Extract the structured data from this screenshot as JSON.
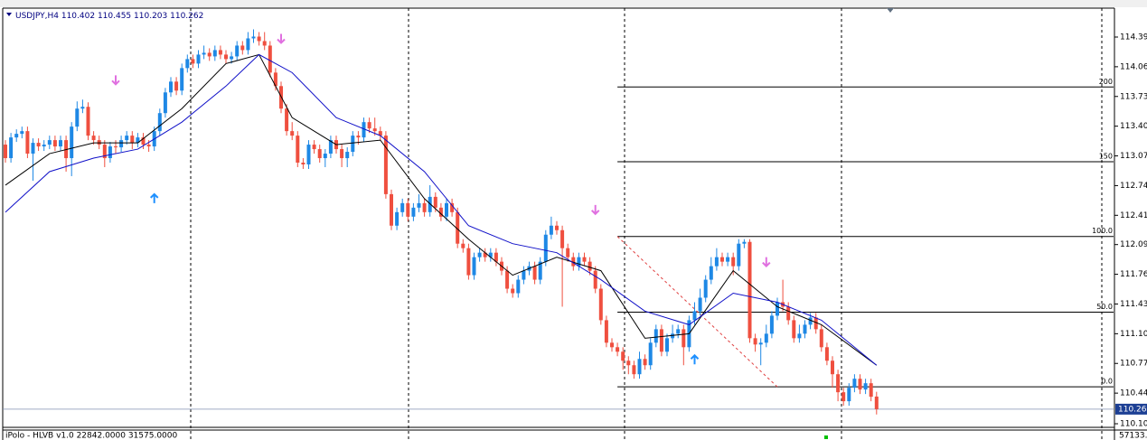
{
  "chart_data": {
    "type": "candlestick",
    "title": "USDJPY,H4",
    "ylim": [
      110.06,
      114.716
    ],
    "yticks": [
      114.395,
      114.065,
      113.735,
      113.405,
      113.075,
      112.745,
      112.415,
      {
        "value": 112.09,
        "label": "112.090"
      },
      {
        "value": 111.76,
        "label": "111.760"
      },
      {
        "value": 111.43,
        "label": "111.430"
      },
      {
        "value": 111.1,
        "label": "111.100"
      },
      {
        "value": 110.77,
        "label": "110.770"
      },
      {
        "value": 110.44,
        "label": "110.440"
      },
      {
        "value": 110.1,
        "label": "110.100"
      }
    ],
    "bull_color": "#1e88e5",
    "bear_color": "#ef4f3f",
    "candles": [
      [
        113.2,
        113.25,
        113.0,
        113.05
      ],
      [
        113.05,
        113.33,
        113.0,
        113.28
      ],
      [
        113.28,
        113.37,
        113.23,
        113.32
      ],
      [
        113.32,
        113.4,
        113.27,
        113.35
      ],
      [
        113.35,
        113.4,
        113.05,
        113.1
      ],
      [
        113.1,
        113.27,
        112.8,
        113.22
      ],
      [
        113.22,
        113.27,
        113.13,
        113.18
      ],
      [
        113.18,
        113.25,
        113.13,
        113.2
      ],
      [
        113.2,
        113.3,
        113.15,
        113.25
      ],
      [
        113.25,
        113.3,
        113.13,
        113.18
      ],
      [
        113.18,
        113.3,
        113.13,
        113.25
      ],
      [
        113.25,
        113.3,
        112.9,
        113.05
      ],
      [
        113.05,
        113.45,
        112.85,
        113.4
      ],
      [
        113.4,
        113.68,
        113.35,
        113.6
      ],
      [
        113.6,
        113.7,
        113.55,
        113.62
      ],
      [
        113.62,
        113.67,
        113.25,
        113.3
      ],
      [
        113.3,
        113.35,
        113.2,
        113.25
      ],
      [
        113.25,
        113.3,
        113.15,
        113.2
      ],
      [
        113.2,
        113.25,
        112.95,
        113.05
      ],
      [
        113.05,
        113.23,
        113.0,
        113.18
      ],
      [
        113.18,
        113.25,
        113.1,
        113.17
      ],
      [
        113.17,
        113.3,
        113.12,
        113.25
      ],
      [
        113.25,
        113.35,
        113.2,
        113.3
      ],
      [
        113.3,
        113.35,
        113.15,
        113.22
      ],
      [
        113.22,
        113.33,
        113.17,
        113.28
      ],
      [
        113.28,
        113.33,
        113.15,
        113.2
      ],
      [
        113.2,
        113.25,
        113.12,
        113.18
      ],
      [
        113.18,
        113.4,
        113.13,
        113.35
      ],
      [
        113.35,
        113.6,
        113.3,
        113.55
      ],
      [
        113.55,
        113.83,
        113.5,
        113.78
      ],
      [
        113.78,
        113.95,
        113.73,
        113.9
      ],
      [
        113.9,
        113.95,
        113.75,
        113.8
      ],
      [
        113.8,
        114.1,
        113.75,
        114.05
      ],
      [
        114.05,
        114.2,
        114.0,
        114.15
      ],
      [
        114.15,
        114.2,
        114.05,
        114.1
      ],
      [
        114.1,
        114.25,
        114.05,
        114.2
      ],
      [
        114.2,
        114.3,
        114.15,
        114.22
      ],
      [
        114.22,
        114.27,
        114.13,
        114.18
      ],
      [
        114.18,
        114.3,
        114.13,
        114.25
      ],
      [
        114.25,
        114.3,
        114.15,
        114.2
      ],
      [
        114.2,
        114.25,
        114.1,
        114.15
      ],
      [
        114.15,
        114.23,
        114.1,
        114.18
      ],
      [
        114.18,
        114.35,
        114.13,
        114.3
      ],
      [
        114.3,
        114.35,
        114.2,
        114.25
      ],
      [
        114.25,
        114.45,
        114.2,
        114.38
      ],
      [
        114.38,
        114.48,
        114.33,
        114.4
      ],
      [
        114.4,
        114.45,
        114.3,
        114.35
      ],
      [
        114.35,
        114.45,
        114.25,
        114.3
      ],
      [
        114.3,
        114.35,
        113.95,
        114.0
      ],
      [
        114.0,
        114.05,
        113.8,
        113.85
      ],
      [
        113.85,
        113.9,
        113.55,
        113.6
      ],
      [
        113.6,
        113.65,
        113.3,
        113.35
      ],
      [
        113.35,
        113.45,
        113.25,
        113.3
      ],
      [
        113.3,
        113.35,
        112.95,
        113.0
      ],
      [
        113.0,
        113.05,
        112.93,
        112.98
      ],
      [
        112.98,
        113.25,
        112.93,
        113.2
      ],
      [
        113.2,
        113.25,
        113.1,
        113.15
      ],
      [
        113.15,
        113.2,
        113.0,
        113.05
      ],
      [
        113.05,
        113.15,
        112.95,
        113.1
      ],
      [
        113.1,
        113.3,
        113.05,
        113.25
      ],
      [
        113.25,
        113.3,
        113.1,
        113.15
      ],
      [
        113.15,
        113.2,
        112.95,
        113.05
      ],
      [
        113.05,
        113.17,
        112.95,
        113.12
      ],
      [
        113.12,
        113.35,
        113.07,
        113.3
      ],
      [
        113.3,
        113.35,
        113.2,
        113.28
      ],
      [
        113.28,
        113.5,
        113.23,
        113.45
      ],
      [
        113.45,
        113.5,
        113.33,
        113.38
      ],
      [
        113.38,
        113.5,
        113.3,
        113.35
      ],
      [
        113.35,
        113.4,
        113.25,
        113.3
      ],
      [
        113.3,
        113.35,
        112.6,
        112.65
      ],
      [
        112.65,
        112.7,
        112.25,
        112.3
      ],
      [
        112.3,
        112.5,
        112.25,
        112.45
      ],
      [
        112.45,
        112.6,
        112.4,
        112.55
      ],
      [
        112.55,
        112.6,
        112.35,
        112.4
      ],
      [
        112.4,
        112.55,
        112.35,
        112.5
      ],
      [
        112.5,
        112.65,
        112.45,
        112.55
      ],
      [
        112.55,
        112.6,
        112.4,
        112.45
      ],
      [
        112.45,
        112.75,
        112.4,
        112.62
      ],
      [
        112.62,
        112.67,
        112.45,
        112.5
      ],
      [
        112.5,
        112.55,
        112.35,
        112.4
      ],
      [
        112.4,
        112.6,
        112.35,
        112.55
      ],
      [
        112.55,
        112.6,
        112.4,
        112.45
      ],
      [
        112.45,
        112.5,
        112.05,
        112.1
      ],
      [
        112.1,
        112.15,
        112.0,
        112.05
      ],
      [
        112.05,
        112.1,
        111.7,
        111.75
      ],
      [
        111.75,
        112.0,
        111.7,
        111.95
      ],
      [
        111.95,
        112.05,
        111.9,
        112.0
      ],
      [
        112.0,
        112.05,
        111.9,
        111.95
      ],
      [
        111.95,
        112.05,
        111.9,
        112.0
      ],
      [
        112.0,
        112.05,
        111.85,
        111.9
      ],
      [
        111.9,
        111.95,
        111.75,
        111.8
      ],
      [
        111.8,
        111.85,
        111.55,
        111.6
      ],
      [
        111.6,
        111.65,
        111.5,
        111.55
      ],
      [
        111.55,
        111.75,
        111.5,
        111.7
      ],
      [
        111.7,
        111.85,
        111.65,
        111.8
      ],
      [
        111.8,
        111.9,
        111.75,
        111.85
      ],
      [
        111.85,
        111.9,
        111.65,
        111.7
      ],
      [
        111.7,
        111.95,
        111.65,
        111.9
      ],
      [
        111.9,
        112.25,
        111.85,
        112.2
      ],
      [
        112.2,
        112.4,
        112.15,
        112.3
      ],
      [
        112.3,
        112.35,
        112.2,
        112.25
      ],
      [
        112.25,
        112.3,
        111.4,
        112.05
      ],
      [
        112.05,
        112.1,
        111.9,
        111.95
      ],
      [
        111.95,
        112.0,
        111.8,
        111.85
      ],
      [
        111.85,
        112.0,
        111.8,
        111.95
      ],
      [
        111.95,
        112.0,
        111.85,
        111.9
      ],
      [
        111.9,
        111.95,
        111.75,
        111.8
      ],
      [
        111.8,
        111.85,
        111.55,
        111.6
      ],
      [
        111.6,
        111.65,
        111.2,
        111.25
      ],
      [
        111.25,
        111.3,
        110.95,
        111.0
      ],
      [
        111.0,
        111.05,
        110.9,
        110.95
      ],
      [
        110.95,
        111.0,
        110.85,
        110.9
      ],
      [
        110.9,
        110.95,
        110.7,
        110.8
      ],
      [
        110.8,
        110.85,
        110.65,
        110.75
      ],
      [
        110.75,
        110.8,
        110.6,
        110.65
      ],
      [
        110.65,
        110.9,
        110.6,
        110.82
      ],
      [
        110.82,
        110.87,
        110.7,
        110.75
      ],
      [
        110.75,
        111.05,
        110.7,
        111.0
      ],
      [
        111.0,
        111.2,
        110.95,
        111.15
      ],
      [
        111.15,
        111.2,
        110.85,
        110.9
      ],
      [
        110.9,
        111.1,
        110.85,
        111.05
      ],
      [
        111.05,
        111.2,
        111.0,
        111.1
      ],
      [
        111.1,
        111.2,
        111.05,
        111.15
      ],
      [
        111.15,
        111.2,
        110.75,
        110.95
      ],
      [
        110.95,
        111.3,
        110.9,
        111.25
      ],
      [
        111.25,
        111.45,
        111.2,
        111.35
      ],
      [
        111.35,
        111.6,
        111.3,
        111.5
      ],
      [
        111.5,
        111.75,
        111.45,
        111.7
      ],
      [
        111.7,
        111.95,
        111.65,
        111.85
      ],
      [
        111.85,
        112.05,
        111.8,
        111.95
      ],
      [
        111.95,
        112.0,
        111.85,
        111.9
      ],
      [
        111.9,
        112.0,
        111.85,
        111.95
      ],
      [
        111.95,
        112.0,
        111.75,
        111.85
      ],
      [
        111.85,
        112.15,
        111.8,
        112.1
      ],
      [
        112.1,
        112.15,
        112.05,
        112.12
      ],
      [
        112.12,
        112.15,
        111.0,
        111.05
      ],
      [
        111.05,
        111.1,
        110.9,
        110.98
      ],
      [
        110.98,
        111.05,
        110.75,
        111.0
      ],
      [
        111.0,
        111.2,
        110.95,
        111.1
      ],
      [
        111.1,
        111.35,
        111.05,
        111.3
      ],
      [
        111.3,
        111.5,
        111.25,
        111.45
      ],
      [
        111.45,
        111.7,
        111.35,
        111.4
      ],
      [
        111.4,
        111.45,
        111.2,
        111.25
      ],
      [
        111.25,
        111.3,
        111.0,
        111.05
      ],
      [
        111.05,
        111.2,
        111.0,
        111.1
      ],
      [
        111.1,
        111.25,
        111.05,
        111.2
      ],
      [
        111.2,
        111.33,
        111.15,
        111.28
      ],
      [
        111.28,
        111.33,
        111.1,
        111.15
      ],
      [
        111.15,
        111.2,
        110.9,
        110.95
      ],
      [
        110.95,
        111.0,
        110.75,
        110.8
      ],
      [
        110.8,
        110.85,
        110.5,
        110.65
      ],
      [
        110.65,
        110.7,
        110.35,
        110.45
      ],
      [
        110.45,
        110.5,
        110.3,
        110.35
      ],
      [
        110.35,
        110.55,
        110.3,
        110.5
      ],
      [
        110.5,
        110.65,
        110.45,
        110.6
      ],
      [
        110.6,
        110.65,
        110.43,
        110.48
      ],
      [
        110.48,
        110.6,
        110.43,
        110.55
      ],
      [
        110.55,
        110.6,
        110.35,
        110.4
      ],
      [
        110.402,
        110.455,
        110.203,
        110.262
      ]
    ],
    "ma_fast": {
      "color": "#000000",
      "x": [
        0,
        8,
        16,
        24,
        32,
        40,
        46,
        52,
        60,
        68,
        76,
        84,
        92,
        100,
        108,
        116,
        124,
        132,
        140,
        148,
        158
      ],
      "values": [
        112.75,
        113.1,
        113.22,
        113.22,
        113.6,
        114.1,
        114.2,
        113.5,
        113.2,
        113.25,
        112.6,
        112.15,
        111.75,
        111.95,
        111.8,
        111.05,
        111.1,
        111.8,
        111.4,
        111.2,
        110.75
      ]
    },
    "ma_slow": {
      "color": "#1010c8",
      "x": [
        0,
        8,
        16,
        24,
        32,
        40,
        46,
        52,
        60,
        68,
        76,
        84,
        92,
        100,
        108,
        116,
        124,
        132,
        140,
        148,
        158
      ],
      "values": [
        112.45,
        112.9,
        113.05,
        113.15,
        113.45,
        113.85,
        114.2,
        114.0,
        113.5,
        113.3,
        112.9,
        112.3,
        112.1,
        112.0,
        111.7,
        111.35,
        111.2,
        111.55,
        111.45,
        111.25,
        110.75
      ]
    },
    "arrows": [
      {
        "x": 20,
        "price": 113.92,
        "direction": "down",
        "color": "#e070e0"
      },
      {
        "x": 50,
        "price": 114.38,
        "direction": "down",
        "color": "#e070e0"
      },
      {
        "x": 107,
        "price": 112.48,
        "direction": "down",
        "color": "#e070e0"
      },
      {
        "x": 138,
        "price": 111.9,
        "direction": "down",
        "color": "#e070e0"
      },
      {
        "x": 27,
        "price": 112.6,
        "direction": "up",
        "color": "#1e90ff"
      },
      {
        "x": 125,
        "price": 110.81,
        "direction": "up",
        "color": "#1e90ff"
      }
    ],
    "fib": {
      "start": 111,
      "levels": [
        {
          "value": 113.84,
          "label": "200"
        },
        {
          "value": 113.01,
          "label": "150"
        },
        {
          "value": 112.18,
          "label": "100.0"
        },
        {
          "value": 111.34,
          "label": "50.0"
        },
        {
          "value": 110.51,
          "label": "0.0"
        }
      ],
      "trendline": {
        "from": [
          111,
          112.18
        ],
        "to": [
          140,
          110.51
        ],
        "color": "#e04040"
      }
    },
    "indicator_label": "iPolo - HLVB v1.0 22842.0000 31575.0000",
    "indicator_scale": 57133.6
  }
}
